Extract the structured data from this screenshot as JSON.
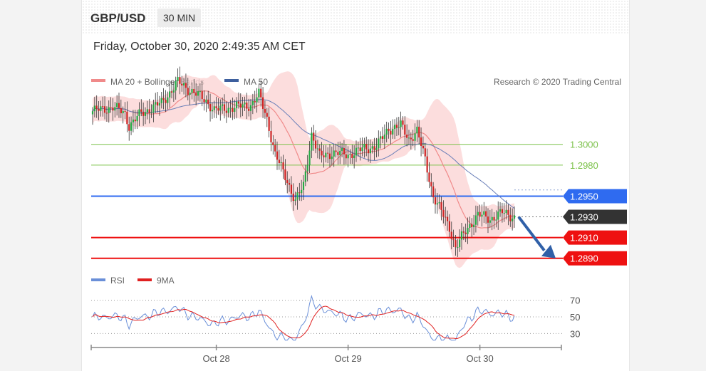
{
  "header": {
    "symbol": "GBP/USD",
    "timeframe": "30 MIN",
    "datetime": "Friday, October 30, 2020 2:49:35 AM CET"
  },
  "legend_main": [
    {
      "label": "MA 20 + Bollinger Bands",
      "color": "#f08a8a"
    },
    {
      "label": "MA 50",
      "color": "#3d5f9e"
    }
  ],
  "copyright": "Research © 2020 Trading Central",
  "legend_rsi": [
    {
      "label": "RSI",
      "color": "#6a8fd8"
    },
    {
      "label": "9MA",
      "color": "#e02020"
    }
  ],
  "colors": {
    "bullish": "#22aa44",
    "bearish": "#cc2222",
    "target_green": "#7cc24a",
    "pivot_blue": "#2f6bf0",
    "support_red": "#ee1111",
    "current_dark": "#333333",
    "band_fill": "#fbd5d5",
    "arrow": "#3060a8"
  },
  "chart_data": [
    {
      "type": "candlestick",
      "ylim": [
        1.2885,
        1.305
      ],
      "x_tick_labels": [
        "Oct 28",
        "Oct 29",
        "Oct 30"
      ],
      "levels": [
        {
          "value": 1.3,
          "label": "1.3000",
          "kind": "resistance"
        },
        {
          "value": 1.298,
          "label": "1.2980",
          "kind": "resistance"
        },
        {
          "value": 1.295,
          "label": "1.2950",
          "kind": "pivot"
        },
        {
          "value": 1.293,
          "label": "1.2930",
          "kind": "current"
        },
        {
          "value": 1.291,
          "label": "1.2910",
          "kind": "support"
        },
        {
          "value": 1.289,
          "label": "1.2890",
          "kind": "support"
        }
      ],
      "price_waypoints": [
        [
          0,
          1.3032
        ],
        [
          10,
          1.3036
        ],
        [
          16,
          1.303
        ],
        [
          18,
          1.3018
        ],
        [
          24,
          1.303
        ],
        [
          34,
          1.304
        ],
        [
          42,
          1.306
        ],
        [
          50,
          1.305
        ],
        [
          56,
          1.3042
        ],
        [
          60,
          1.3033
        ],
        [
          70,
          1.3036
        ],
        [
          78,
          1.3038
        ],
        [
          82,
          1.3048
        ],
        [
          86,
          1.3025
        ],
        [
          90,
          1.299
        ],
        [
          96,
          1.2965
        ],
        [
          100,
          1.2945
        ],
        [
          104,
          1.296
        ],
        [
          108,
          1.301
        ],
        [
          112,
          1.2988
        ],
        [
          118,
          1.2992
        ],
        [
          126,
          1.299
        ],
        [
          134,
          1.2996
        ],
        [
          140,
          1.2998
        ],
        [
          146,
          1.3015
        ],
        [
          152,
          1.3018
        ],
        [
          156,
          1.3005
        ],
        [
          160,
          1.3013
        ],
        [
          164,
          1.2985
        ],
        [
          168,
          1.295
        ],
        [
          172,
          1.2935
        ],
        [
          176,
          1.292
        ],
        [
          179,
          1.29
        ],
        [
          182,
          1.291
        ],
        [
          186,
          1.2922
        ],
        [
          190,
          1.2932
        ],
        [
          196,
          1.2928
        ],
        [
          202,
          1.2934
        ],
        [
          208,
          1.293
        ]
      ]
    },
    {
      "type": "line",
      "title": "RSI",
      "y_ticks": [
        70,
        50,
        30
      ],
      "ylim": [
        20,
        80
      ]
    }
  ]
}
